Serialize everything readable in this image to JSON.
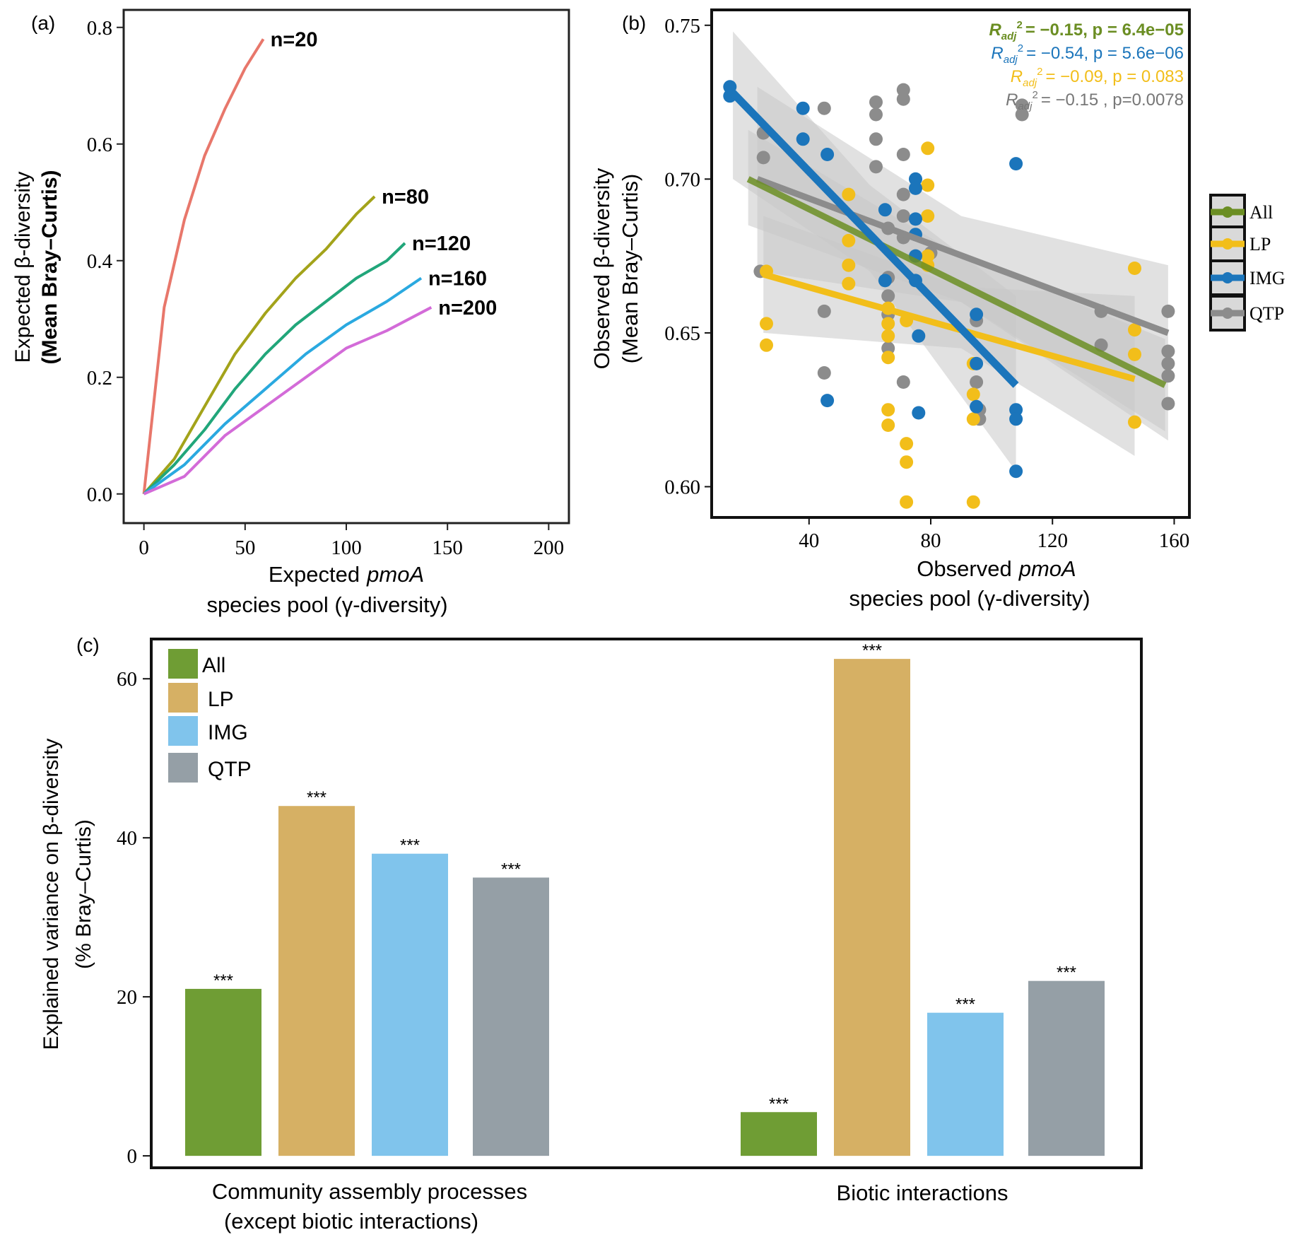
{
  "colors": {
    "all": "#6b8e23",
    "lp": "#f2be1a",
    "img": "#1b75bb",
    "qtp": "#8c8c8c",
    "ci": "#c9c9c9",
    "bar_all": "#6f9d34",
    "bar_lp": "#d6b064",
    "bar_img": "#80c4ec",
    "bar_qtp": "#959fa6",
    "n20": "#e8776b",
    "n80": "#a3a31a",
    "n120": "#21a67a",
    "n160": "#2aa9e0",
    "n200": "#d36bd8"
  },
  "chart_data": [
    {
      "panel": "(a)",
      "type": "line",
      "ylabel_line1": "Expected β-diversity",
      "ylabel_line2": "(Mean Bray–Curtis)",
      "xlabel_prefix": "Expected",
      "xlabel_italic": "pmoA",
      "xlabel_line2": "species pool (γ-diversity)",
      "xlim": [
        -10,
        210
      ],
      "ylim": [
        -0.05,
        0.83
      ],
      "xticks": [
        0,
        50,
        100,
        150,
        200
      ],
      "xtick_labels": [
        "0",
        "50",
        "100",
        "150",
        "200"
      ],
      "yticks": [
        0,
        0.2,
        0.4,
        0.6,
        0.8
      ],
      "ytick_labels": [
        "0.0",
        "0.2",
        "0.4",
        "0.6",
        "0.8"
      ],
      "series": [
        {
          "name": "n=20",
          "x": [
            0,
            10,
            20,
            30,
            40,
            50,
            59
          ],
          "y": [
            0,
            0.32,
            0.47,
            0.58,
            0.66,
            0.73,
            0.78
          ]
        },
        {
          "name": "n=80",
          "x": [
            0,
            15,
            30,
            45,
            60,
            75,
            90,
            105,
            114
          ],
          "y": [
            0,
            0.06,
            0.15,
            0.24,
            0.31,
            0.37,
            0.42,
            0.48,
            0.51
          ]
        },
        {
          "name": "n=120",
          "x": [
            0,
            15,
            30,
            45,
            60,
            75,
            90,
            105,
            120,
            129
          ],
          "y": [
            0,
            0.05,
            0.11,
            0.18,
            0.24,
            0.29,
            0.33,
            0.37,
            0.4,
            0.43
          ]
        },
        {
          "name": "n=160",
          "x": [
            0,
            20,
            40,
            60,
            80,
            100,
            120,
            137
          ],
          "y": [
            0,
            0.05,
            0.12,
            0.18,
            0.24,
            0.29,
            0.33,
            0.37
          ]
        },
        {
          "name": "n=200",
          "x": [
            0,
            20,
            40,
            60,
            80,
            100,
            120,
            142
          ],
          "y": [
            0,
            0.03,
            0.1,
            0.15,
            0.2,
            0.25,
            0.28,
            0.32
          ]
        }
      ]
    },
    {
      "panel": "(b)",
      "type": "scatter",
      "ylabel_line1": "Observed β-diversity",
      "ylabel_line2": "(Mean Bray–Curtis)",
      "xlabel_prefix": "Observed",
      "xlabel_italic": "pmoA",
      "xlabel_line2": "species pool (γ-diversity)",
      "xlim": [
        8,
        165
      ],
      "ylim": [
        0.59,
        0.755
      ],
      "xticks": [
        40,
        80,
        120,
        160
      ],
      "xtick_labels": [
        "40",
        "80",
        "120",
        "160"
      ],
      "yticks": [
        0.6,
        0.65,
        0.7,
        0.75
      ],
      "ytick_labels": [
        "0.60",
        "0.65",
        "0.70",
        "0.75"
      ],
      "legend": [
        "All",
        "LP",
        "IMG",
        "QTP"
      ],
      "stats": [
        {
          "group": "All",
          "r_label": "R",
          "sub": "adj",
          "sup": "2",
          "text": "= −0.15, p = 6.4e−05"
        },
        {
          "group": "IMG",
          "r_label": "R",
          "sub": "adj",
          "sup": "2",
          "text": "= −0.54, p = 5.6e−06"
        },
        {
          "group": "LP",
          "r_label": "R",
          "sub": "adj",
          "sup": "2",
          "text": "= −0.09, p = 0.083"
        },
        {
          "group": "QTP",
          "r_label": "R",
          "sub": "adj",
          "sup": "2",
          "text": "= −0.15 ,  p=0.0078"
        }
      ],
      "fits": [
        {
          "group": "QTP",
          "x": [
            23,
            158
          ],
          "y": [
            0.7,
            0.65
          ],
          "ci_lo_x": [
            23,
            90,
            158
          ],
          "ci_lo": [
            0.67,
            0.66,
            0.615
          ],
          "ci_hi": [
            0.73,
            0.688,
            0.672
          ]
        },
        {
          "group": "All",
          "x": [
            20,
            157
          ],
          "y": [
            0.7,
            0.633
          ],
          "ci_lo_x": [
            20,
            90,
            157
          ],
          "ci_lo": [
            0.685,
            0.66,
            0.618
          ],
          "ci_hi": [
            0.716,
            0.675,
            0.648
          ]
        },
        {
          "group": "LP",
          "x": [
            25,
            147
          ],
          "y": [
            0.669,
            0.635
          ],
          "ci_lo_x": [
            25,
            90,
            147
          ],
          "ci_lo": [
            0.65,
            0.645,
            0.61
          ],
          "ci_hi": [
            0.688,
            0.665,
            0.662
          ]
        },
        {
          "group": "IMG",
          "x": [
            15,
            108
          ],
          "y": [
            0.728,
            0.633
          ],
          "ci_lo_x": [
            15,
            60,
            108
          ],
          "ci_lo": [
            0.7,
            0.67,
            0.605
          ],
          "ci_hi": [
            0.748,
            0.698,
            0.662
          ]
        }
      ],
      "points": {
        "QTP": [
          [
            24,
            0.67
          ],
          [
            25,
            0.707
          ],
          [
            25,
            0.715
          ],
          [
            45,
            0.723
          ],
          [
            45,
            0.657
          ],
          [
            45,
            0.637
          ],
          [
            62,
            0.725
          ],
          [
            62,
            0.721
          ],
          [
            62,
            0.713
          ],
          [
            62,
            0.704
          ],
          [
            66,
            0.684
          ],
          [
            66,
            0.668
          ],
          [
            66,
            0.662
          ],
          [
            66,
            0.656
          ],
          [
            66,
            0.645
          ],
          [
            71,
            0.729
          ],
          [
            71,
            0.726
          ],
          [
            71,
            0.708
          ],
          [
            71,
            0.695
          ],
          [
            71,
            0.688
          ],
          [
            71,
            0.681
          ],
          [
            71,
            0.634
          ],
          [
            80,
            0.676
          ],
          [
            95,
            0.634
          ],
          [
            95,
            0.654
          ],
          [
            96,
            0.625
          ],
          [
            96,
            0.622
          ],
          [
            110,
            0.724
          ],
          [
            110,
            0.721
          ],
          [
            136,
            0.657
          ],
          [
            136,
            0.646
          ],
          [
            158,
            0.657
          ],
          [
            158,
            0.644
          ],
          [
            158,
            0.64
          ],
          [
            158,
            0.636
          ],
          [
            158,
            0.627
          ]
        ],
        "LP": [
          [
            26,
            0.67
          ],
          [
            26,
            0.653
          ],
          [
            26,
            0.646
          ],
          [
            53,
            0.695
          ],
          [
            53,
            0.68
          ],
          [
            53,
            0.672
          ],
          [
            53,
            0.666
          ],
          [
            66,
            0.658
          ],
          [
            66,
            0.653
          ],
          [
            66,
            0.649
          ],
          [
            66,
            0.642
          ],
          [
            66,
            0.625
          ],
          [
            66,
            0.62
          ],
          [
            72,
            0.654
          ],
          [
            72,
            0.614
          ],
          [
            72,
            0.608
          ],
          [
            72,
            0.595
          ],
          [
            79,
            0.71
          ],
          [
            79,
            0.698
          ],
          [
            79,
            0.688
          ],
          [
            79,
            0.675
          ],
          [
            79,
            0.672
          ],
          [
            94,
            0.64
          ],
          [
            94,
            0.63
          ],
          [
            94,
            0.622
          ],
          [
            94,
            0.595
          ],
          [
            147,
            0.671
          ],
          [
            147,
            0.651
          ],
          [
            147,
            0.643
          ],
          [
            147,
            0.621
          ]
        ],
        "IMG": [
          [
            14,
            0.73
          ],
          [
            14,
            0.727
          ],
          [
            38,
            0.723
          ],
          [
            38,
            0.713
          ],
          [
            46,
            0.708
          ],
          [
            46,
            0.628
          ],
          [
            65,
            0.69
          ],
          [
            65,
            0.667
          ],
          [
            75,
            0.7
          ],
          [
            75,
            0.697
          ],
          [
            75,
            0.687
          ],
          [
            75,
            0.682
          ],
          [
            75,
            0.675
          ],
          [
            75,
            0.667
          ],
          [
            76,
            0.649
          ],
          [
            76,
            0.624
          ],
          [
            95,
            0.656
          ],
          [
            95,
            0.64
          ],
          [
            95,
            0.626
          ],
          [
            108,
            0.705
          ],
          [
            108,
            0.625
          ],
          [
            108,
            0.622
          ],
          [
            108,
            0.605
          ]
        ]
      }
    },
    {
      "panel": "(c)",
      "type": "bar",
      "ylabel_line1": "Explained variance on β-diversity",
      "ylabel_line2": "(% Bray–Curtis)",
      "categories": [
        "Community assembly processes",
        "Biotic interactions"
      ],
      "category_line2": [
        "(except biotic interactions)",
        ""
      ],
      "ylim": [
        -1.5,
        65
      ],
      "yticks": [
        0,
        20,
        40,
        60
      ],
      "ytick_labels": [
        "0",
        "20",
        "40",
        "60"
      ],
      "legend": [
        "All",
        "LP",
        "IMG",
        "QTP"
      ],
      "significance": "***",
      "series": [
        {
          "name": "All",
          "values": [
            21,
            5.5
          ]
        },
        {
          "name": "LP",
          "values": [
            44,
            62.5
          ]
        },
        {
          "name": "IMG",
          "values": [
            38,
            18
          ]
        },
        {
          "name": "QTP",
          "values": [
            35,
            22
          ]
        }
      ]
    }
  ]
}
